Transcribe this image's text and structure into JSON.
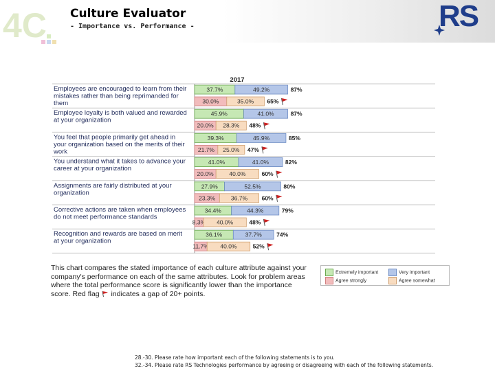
{
  "header": {
    "title": "Culture Evaluator",
    "subtitle": "- Importance vs. Performance -",
    "logo_left_text": "4C",
    "logo_right_text": "RS"
  },
  "colors": {
    "extremely_important": "#c6e8b4",
    "very_important": "#b4c6e8",
    "agree_strongly": "#f2bcbc",
    "agree_somewhat": "#f8dcc0",
    "flag": "#cc2222"
  },
  "chart_data": {
    "type": "bar",
    "orientation": "horizontal-stacked",
    "title": "2017",
    "xlim": [
      0,
      100
    ],
    "categories": [
      "Employees are encouraged to learn from their mistakes rather than being reprimanded for them",
      "Employee loyalty is both valued and rewarded at your organization",
      "You feel that people primarily get ahead in your organization based on the merits of their work",
      "You understand what it takes to advance your career at your organization",
      "Assignments are fairly distributed at your organization",
      "Corrective actions are taken when employees do not meet performance standards",
      "Recognition and rewards are based on merit at your organization"
    ],
    "category_lines": [
      [
        "Employees are encouraged to learn from their",
        "mistakes rather than being reprimanded for",
        "them"
      ],
      [
        "Employee loyalty is both valued and rewarded",
        "at your organization"
      ],
      [
        "You feel that people primarily get ahead in",
        "your organization based on the merits of their",
        "work"
      ],
      [
        "You understand what it takes to advance your",
        "career at your organization"
      ],
      [
        "Assignments are fairly distributed at your",
        "organization"
      ],
      [
        "Corrective actions are taken when employees",
        "do not meet performance standards"
      ],
      [
        "Recognition and rewards are based on merit",
        "at your organization"
      ]
    ],
    "importance": {
      "series": [
        {
          "name": "Extremely important",
          "values": [
            37.7,
            45.9,
            39.3,
            41.0,
            27.9,
            34.4,
            36.1
          ],
          "labels": [
            "37.7%",
            "45.9%",
            "39.3%",
            "41.0%",
            "27.9%",
            "34.4%",
            "36.1%"
          ]
        },
        {
          "name": "Very important",
          "values": [
            49.2,
            41.0,
            45.9,
            41.0,
            52.5,
            44.3,
            37.7
          ],
          "labels": [
            "49.2%",
            "41.0%",
            "45.9%",
            "41.0%",
            "52.5%",
            "44.3%",
            "37.7%"
          ]
        }
      ],
      "totals": [
        "87%",
        "87%",
        "85%",
        "82%",
        "80%",
        "79%",
        "74%"
      ]
    },
    "performance": {
      "series": [
        {
          "name": "Agree strongly",
          "values": [
            30.0,
            20.0,
            21.7,
            20.0,
            23.3,
            8.3,
            11.7
          ],
          "labels": [
            "30.0%",
            "20.0%",
            "21.7%",
            "20.0%",
            "23.3%",
            "8.3%",
            "11.7%"
          ]
        },
        {
          "name": "Agree somewhat",
          "values": [
            35.0,
            28.3,
            25.0,
            40.0,
            36.7,
            40.0,
            40.0
          ],
          "labels": [
            "35.0%",
            "28.3%",
            "25.0%",
            "40.0%",
            "36.7%",
            "40.0%",
            "40.0%"
          ]
        }
      ],
      "totals": [
        "65%",
        "48%",
        "47%",
        "60%",
        "60%",
        "48%",
        "52%"
      ],
      "flagged": [
        true,
        true,
        true,
        true,
        true,
        true,
        true
      ]
    }
  },
  "legend": {
    "extremely_important": "Extremely important",
    "very_important": "Very important",
    "agree_strongly": "Agree strongly",
    "agree_somewhat": "Agree somewhat"
  },
  "caption": {
    "text": "This chart compares the stated importance of each culture attribute against your company's performance on each of the same attributes. Look for problem areas where the total performance score is significantly lower than the importance score. Red flag",
    "text_end": "indicates a gap of 20+ points."
  },
  "footnotes": [
    "28.-30. Please rate how important each of the following statements is to you.",
    "32.-34. Please rate RS Technologies performance by agreeing or disagreeing with each of the following statements."
  ]
}
